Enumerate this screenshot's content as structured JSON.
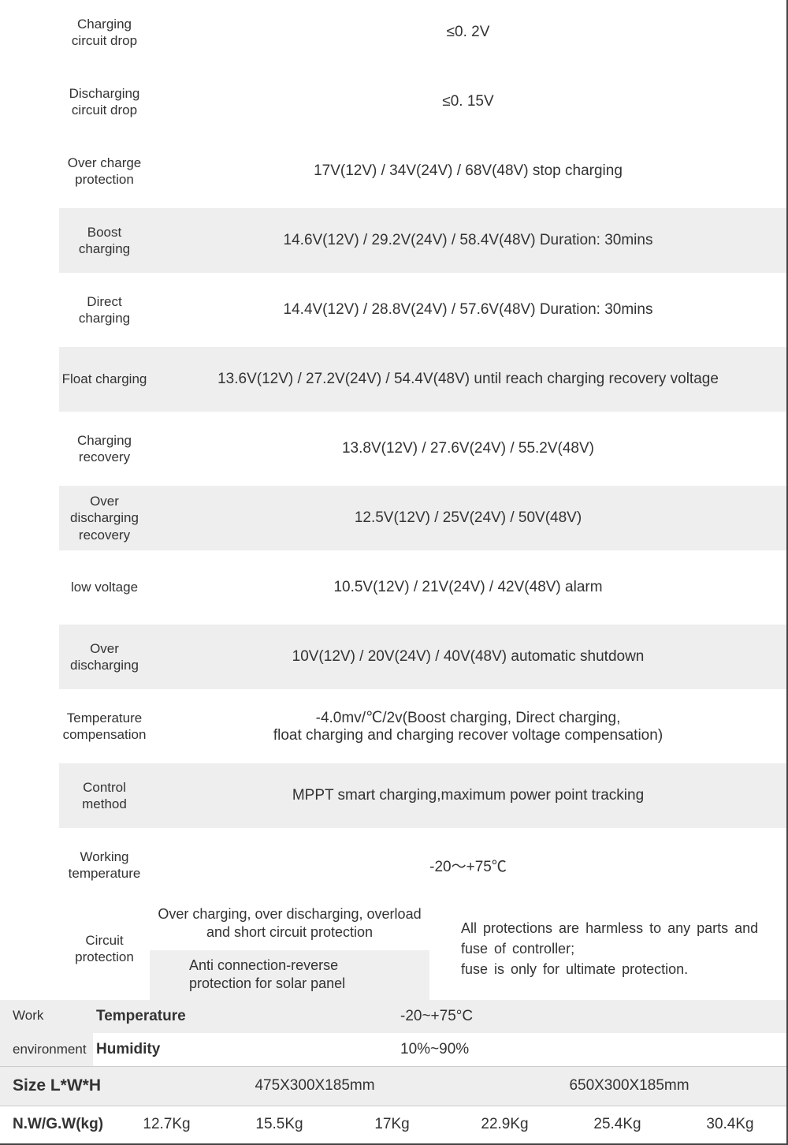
{
  "rows": [
    {
      "label": "Charging circuit drop",
      "value": "≤0. 2V",
      "alt": false
    },
    {
      "label": "Discharging circuit drop",
      "value": "≤0. 15V",
      "alt": false
    },
    {
      "label": "Over charge protection",
      "value": "17V(12V) / 34V(24V) / 68V(48V) stop charging",
      "alt": false
    },
    {
      "label": "Boost charging",
      "value": "14.6V(12V) / 29.2V(24V) / 58.4V(48V) Duration: 30mins",
      "alt": true
    },
    {
      "label": "Direct charging",
      "value": "14.4V(12V) / 28.8V(24V) / 57.6V(48V) Duration: 30mins",
      "alt": false
    },
    {
      "label": "Float charging",
      "value": "13.6V(12V) / 27.2V(24V) / 54.4V(48V) until reach charging recovery voltage",
      "alt": true
    },
    {
      "label": "Charging recovery",
      "value": "13.8V(12V) / 27.6V(24V) / 55.2V(48V)",
      "alt": false
    },
    {
      "label": "Over discharging recovery",
      "value": "12.5V(12V) / 25V(24V) / 50V(48V)",
      "alt": true
    },
    {
      "label": "low voltage",
      "value": "10.5V(12V) / 21V(24V) / 42V(48V) alarm",
      "alt": false
    },
    {
      "label": "Over discharging",
      "value": "10V(12V) / 20V(24V) / 40V(48V) automatic shutdown",
      "alt": true
    },
    {
      "label": "Temperature compensation",
      "value": "-4.0mv/℃/2v(Boost charging, Direct charging,\nfloat charging and charging recover voltage compensation)",
      "alt": false
    },
    {
      "label": "Control method",
      "value": "MPPT smart charging,maximum power point tracking",
      "alt": true
    },
    {
      "label": "Working temperature",
      "value": "-20～+75℃",
      "alt": false
    }
  ],
  "circuit": {
    "label": "Circuit protection",
    "mid_top": "Over charging, over discharging, overload and short circuit protection",
    "mid_bot": "Anti connection-reverse protection for solar panel",
    "right": "All protections are harmless to any parts and fuse of controller;\nfuse is only for ultimate protection."
  },
  "env": {
    "cat": "Work environment",
    "temp_label": "Temperature",
    "temp_val": "-20~+75°C",
    "hum_label": "Humidity",
    "hum_val": "10%~90%"
  },
  "size": {
    "label": "Size L*W*H",
    "v1": "475X300X185mm",
    "v2": "650X300X185mm"
  },
  "weight": {
    "label": "N.W/G.W(kg)",
    "values": [
      "12.7Kg",
      "15.5Kg",
      "17Kg",
      "22.9Kg",
      "25.4Kg",
      "30.4Kg"
    ]
  },
  "colors": {
    "alt_bg": "#eeeeee",
    "text": "#333333",
    "border": "#444444"
  }
}
